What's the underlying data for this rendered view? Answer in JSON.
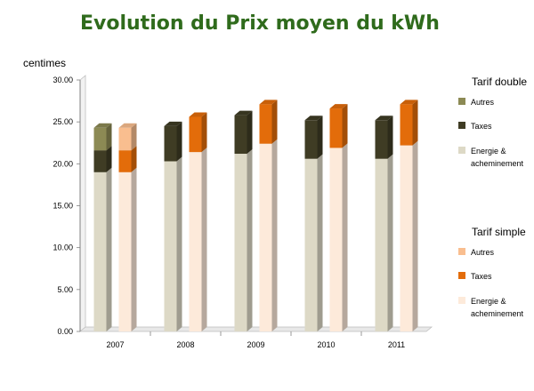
{
  "title": "Evolution du Prix moyen du kWh",
  "y_unit_label": "centimes",
  "colors": {
    "double_autres": "#8c8a54",
    "double_taxes": "#3f3c24",
    "double_energie": "#ddd9c6",
    "simple_autres": "#f9be8f",
    "simple_taxes": "#e36c0a",
    "simple_energie": "#fdeada",
    "title": "#2f6b1c"
  },
  "chart_data": {
    "type": "bar",
    "stacked": true,
    "three_d": true,
    "categories": [
      "2007",
      "2008",
      "2009",
      "2010",
      "2011"
    ],
    "ylim": [
      0,
      30
    ],
    "y_ticks": [
      "0.00",
      "5.00",
      "10.00",
      "15.00",
      "20.00",
      "25.00",
      "30.00"
    ],
    "groups": [
      {
        "name": "Tarif double",
        "series": [
          {
            "name": "Energie & acheminement",
            "color_key": "double_energie",
            "values": [
              19.0,
              20.3,
              21.2,
              20.6,
              20.6
            ]
          },
          {
            "name": "Taxes",
            "color_key": "double_taxes",
            "values": [
              2.6,
              4.2,
              4.6,
              4.6,
              4.6
            ]
          },
          {
            "name": "Autres",
            "color_key": "double_autres",
            "values": [
              2.7,
              0,
              0,
              0,
              0
            ]
          }
        ]
      },
      {
        "name": "Tarif simple",
        "series": [
          {
            "name": "Energie & acheminement",
            "color_key": "simple_energie",
            "values": [
              19.0,
              21.4,
              22.4,
              21.9,
              22.2
            ]
          },
          {
            "name": "Taxes",
            "color_key": "simple_taxes",
            "values": [
              2.6,
              4.2,
              4.7,
              4.7,
              4.9
            ]
          },
          {
            "name": "Autres",
            "color_key": "simple_autres",
            "values": [
              2.7,
              0,
              0,
              0,
              0
            ]
          }
        ]
      }
    ]
  }
}
